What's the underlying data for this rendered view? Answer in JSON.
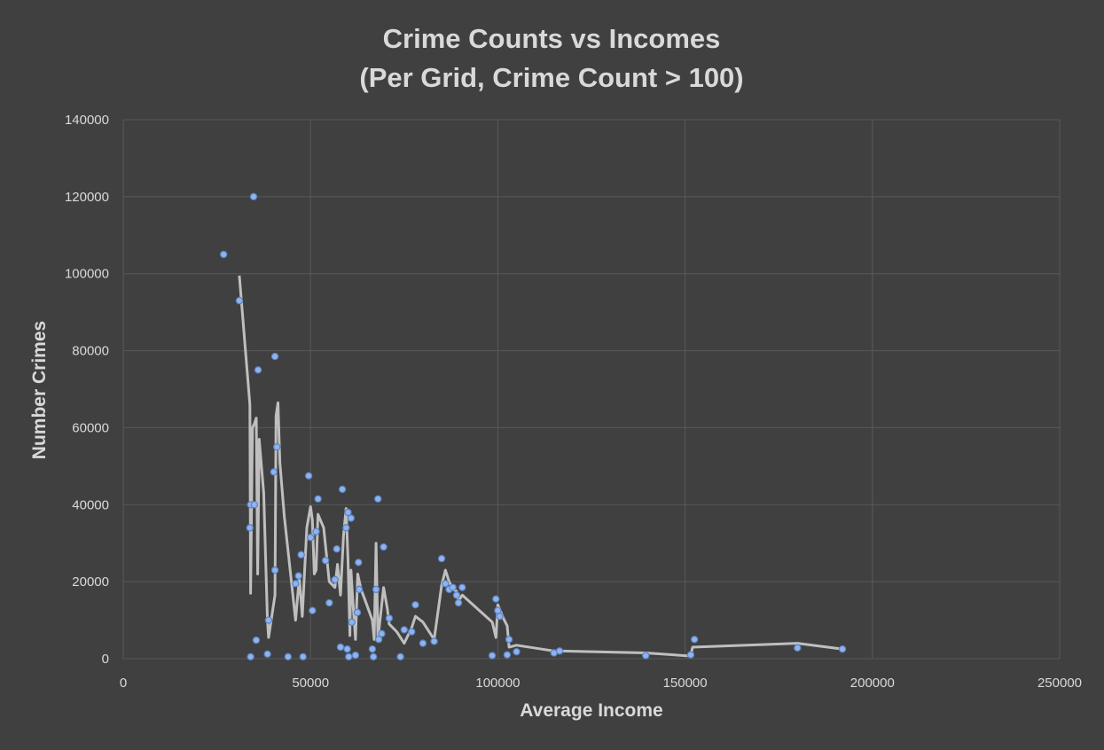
{
  "chart_data": {
    "type": "scatter",
    "title": [
      "Crime Counts vs Incomes",
      "(Per Grid, Crime Count > 100)"
    ],
    "xlabel": "Average Income",
    "ylabel": "Number Crimes",
    "xlim": [
      0,
      250000
    ],
    "ylim": [
      0,
      140000
    ],
    "x_ticks": [
      0,
      50000,
      100000,
      150000,
      200000,
      250000
    ],
    "y_ticks": [
      0,
      20000,
      40000,
      60000,
      80000,
      100000,
      120000,
      140000
    ],
    "grid": true,
    "legend": "none",
    "colors": {
      "background": "#404040",
      "points": "#8fb4ea",
      "trendline": "#bfbfbf",
      "text": "#d9d9d9",
      "grid": "#595959"
    },
    "series": [
      {
        "values_xy": [
          [
            26800,
            105000
          ],
          [
            31000,
            93000
          ],
          [
            34800,
            120000
          ],
          [
            34000,
            40000
          ],
          [
            33800,
            34000
          ],
          [
            34000,
            500
          ],
          [
            35000,
            40000
          ],
          [
            35500,
            4800
          ],
          [
            36000,
            75000
          ],
          [
            38500,
            1200
          ],
          [
            38800,
            10000
          ],
          [
            40500,
            78500
          ],
          [
            40200,
            48500
          ],
          [
            41000,
            55000
          ],
          [
            40500,
            23000
          ],
          [
            44000,
            500
          ],
          [
            46000,
            19500
          ],
          [
            46800,
            21500
          ],
          [
            47500,
            27000
          ],
          [
            48000,
            500
          ],
          [
            49500,
            47500
          ],
          [
            50000,
            31500
          ],
          [
            50500,
            12500
          ],
          [
            51500,
            33000
          ],
          [
            52000,
            41500
          ],
          [
            54000,
            25500
          ],
          [
            55000,
            14500
          ],
          [
            56500,
            20500
          ],
          [
            57000,
            28500
          ],
          [
            58000,
            3000
          ],
          [
            58500,
            44000
          ],
          [
            59500,
            34000
          ],
          [
            60000,
            38000
          ],
          [
            59800,
            2500
          ],
          [
            60200,
            500
          ],
          [
            60800,
            36500
          ],
          [
            61000,
            9500
          ],
          [
            62000,
            900
          ],
          [
            62500,
            12000
          ],
          [
            62800,
            25000
          ],
          [
            63000,
            18000
          ],
          [
            66500,
            2500
          ],
          [
            66800,
            500
          ],
          [
            67500,
            18000
          ],
          [
            68000,
            41500
          ],
          [
            68200,
            5000
          ],
          [
            69000,
            6500
          ],
          [
            69500,
            29000
          ],
          [
            71000,
            10500
          ],
          [
            74000,
            500
          ],
          [
            75000,
            7500
          ],
          [
            77000,
            7000
          ],
          [
            78000,
            14000
          ],
          [
            80000,
            4000
          ],
          [
            83000,
            4500
          ],
          [
            85000,
            26000
          ],
          [
            86000,
            19500
          ],
          [
            87000,
            18000
          ],
          [
            88000,
            18500
          ],
          [
            89000,
            16500
          ],
          [
            89500,
            14500
          ],
          [
            90500,
            18500
          ],
          [
            98500,
            800
          ],
          [
            99500,
            15500
          ],
          [
            100000,
            12500
          ],
          [
            100500,
            11000
          ],
          [
            102500,
            1000
          ],
          [
            103000,
            5000
          ],
          [
            105000,
            1800
          ],
          [
            115000,
            1500
          ],
          [
            116500,
            2000
          ],
          [
            139500,
            800
          ],
          [
            151500,
            1000
          ],
          [
            152500,
            5000
          ],
          [
            180000,
            2800
          ],
          [
            192000,
            2500
          ]
        ]
      }
    ],
    "trendline": {
      "type": "moving-average",
      "values_xy": [
        [
          31000,
          99500
        ],
        [
          33800,
          66000
        ],
        [
          34000,
          17000
        ],
        [
          34500,
          60000
        ],
        [
          35000,
          61000
        ],
        [
          35500,
          62500
        ],
        [
          35900,
          22000
        ],
        [
          36300,
          57000
        ],
        [
          37500,
          43000
        ],
        [
          38500,
          10000
        ],
        [
          38800,
          5500
        ],
        [
          40500,
          16500
        ],
        [
          40800,
          63000
        ],
        [
          41300,
          66500
        ],
        [
          41800,
          51000
        ],
        [
          43000,
          37000
        ],
        [
          45000,
          19000
        ],
        [
          46000,
          10000
        ],
        [
          47000,
          21000
        ],
        [
          47800,
          11000
        ],
        [
          49000,
          34000
        ],
        [
          50000,
          39500
        ],
        [
          50500,
          36000
        ],
        [
          51000,
          22000
        ],
        [
          51500,
          23000
        ],
        [
          52000,
          37500
        ],
        [
          53500,
          34000
        ],
        [
          55000,
          20000
        ],
        [
          56500,
          18500
        ],
        [
          57200,
          24500
        ],
        [
          58000,
          16500
        ],
        [
          58800,
          32000
        ],
        [
          59500,
          39000
        ],
        [
          60000,
          26000
        ],
        [
          60500,
          6000
        ],
        [
          60800,
          23000
        ],
        [
          61300,
          15000
        ],
        [
          62000,
          5000
        ],
        [
          62600,
          22000
        ],
        [
          63500,
          18000
        ],
        [
          65000,
          14000
        ],
        [
          66500,
          10000
        ],
        [
          67000,
          5000
        ],
        [
          67500,
          30000
        ],
        [
          68000,
          5000
        ],
        [
          69500,
          18500
        ],
        [
          70500,
          13000
        ],
        [
          71000,
          9000
        ],
        [
          73000,
          7000
        ],
        [
          75000,
          4000
        ],
        [
          77000,
          8000
        ],
        [
          78000,
          11000
        ],
        [
          80000,
          9500
        ],
        [
          83000,
          5000
        ],
        [
          85000,
          19000
        ],
        [
          86000,
          23000
        ],
        [
          87000,
          20000
        ],
        [
          88000,
          18000
        ],
        [
          89000,
          17500
        ],
        [
          89500,
          15000
        ],
        [
          90500,
          16500
        ],
        [
          98500,
          9500
        ],
        [
          99500,
          5500
        ],
        [
          100000,
          14000
        ],
        [
          101500,
          10500
        ],
        [
          102500,
          8500
        ],
        [
          103000,
          3000
        ],
        [
          105000,
          3500
        ],
        [
          115000,
          2000
        ],
        [
          116500,
          2000
        ],
        [
          139500,
          1500
        ],
        [
          151500,
          700
        ],
        [
          152000,
          3000
        ],
        [
          180000,
          4000
        ],
        [
          192000,
          2500
        ]
      ]
    }
  }
}
